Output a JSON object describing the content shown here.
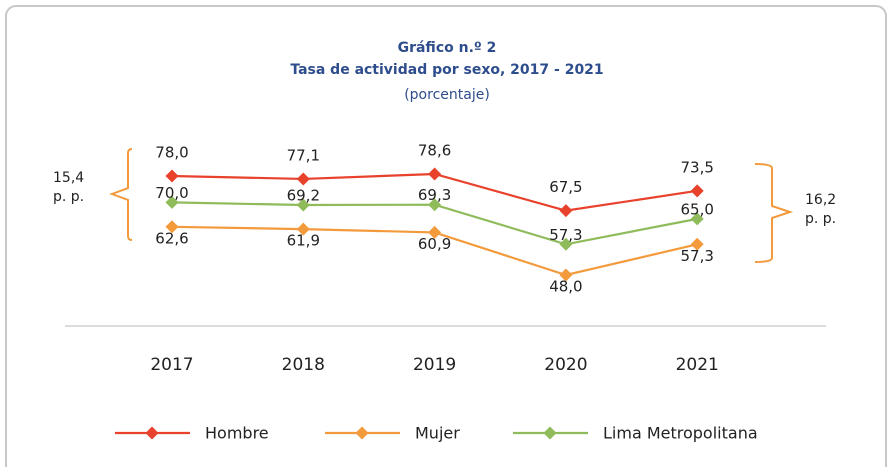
{
  "chart_data": {
    "type": "line",
    "title": "Gráfico n.º 2",
    "subtitle": "Tasa de actividad por sexo, 2017 - 2021",
    "unit_label": "(porcentaje)",
    "categories": [
      "2017",
      "2018",
      "2019",
      "2020",
      "2021"
    ],
    "series": [
      {
        "name": "Hombre",
        "color": "#e8412c",
        "values": [
          78.0,
          77.1,
          78.6,
          67.5,
          73.5
        ],
        "value_labels": [
          "78,0",
          "77,1",
          "78,6",
          "67,5",
          "73,5"
        ]
      },
      {
        "name": "Mujer",
        "color": "#f39a3c",
        "values": [
          62.6,
          61.9,
          60.9,
          48.0,
          57.3
        ],
        "value_labels": [
          "62,6",
          "61,9",
          "60,9",
          "48,0",
          "57,3"
        ]
      },
      {
        "name": "Lima Metropolitana",
        "color": "#8fbb5a",
        "values": [
          70.0,
          69.2,
          69.3,
          57.3,
          65.0
        ],
        "value_labels": [
          "70,0",
          "69,2",
          "69,3",
          "57,3",
          "65,0"
        ]
      }
    ],
    "annotations": [
      [
        "15,4",
        "p. p."
      ],
      [
        "16,2",
        "p. p."
      ]
    ],
    "legend": "bottom"
  }
}
